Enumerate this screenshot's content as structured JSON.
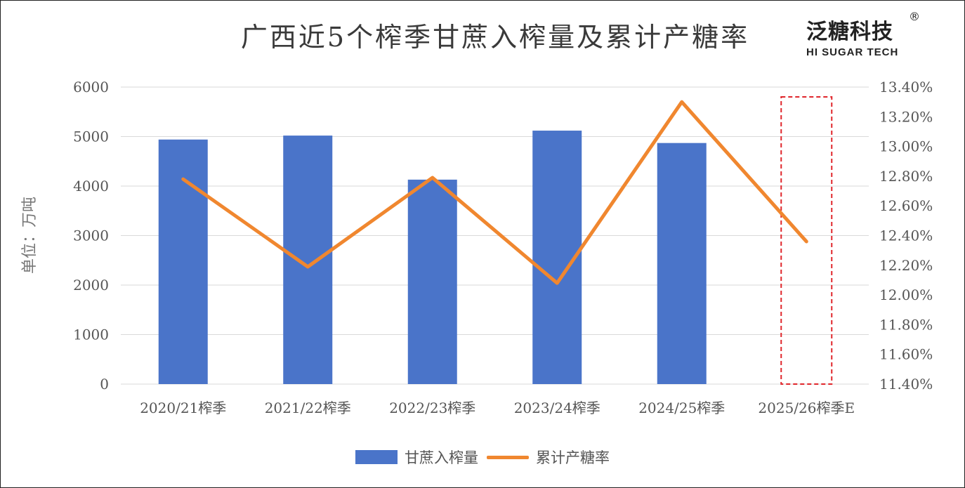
{
  "title": "广西近5个榨季甘蔗入榨量及累计产糖率",
  "brand": {
    "cn": "泛糖科技",
    "en": "HI SUGAR TECH",
    "reg": "®"
  },
  "colors": {
    "bar": "#4a74c9",
    "line": "#f0872f",
    "grid": "#d9d9d9",
    "estimate_box": "#e0262b"
  },
  "chart_data": {
    "type": "bar",
    "categories": [
      "2020/21榨季",
      "2021/22榨季",
      "2022/23榨季",
      "2023/24榨季",
      "2024/25榨季",
      "2025/26榨季E"
    ],
    "ylabel": "单位：万吨",
    "ylim": [
      0,
      6000
    ],
    "y_ticks": [
      "0",
      "1000",
      "2000",
      "3000",
      "4000",
      "5000",
      "6000"
    ],
    "y2lim": [
      11.4,
      13.4
    ],
    "y2_ticks": [
      "11.40%",
      "11.60%",
      "11.80%",
      "12.00%",
      "12.20%",
      "12.40%",
      "12.60%",
      "12.80%",
      "13.00%",
      "13.20%",
      "13.40%"
    ],
    "grid": true,
    "legend_position": "bottom",
    "series": [
      {
        "name": "甘蔗入榨量",
        "type": "bar",
        "axis": "left",
        "values": [
          4940,
          5020,
          4130,
          5120,
          4870,
          null
        ]
      },
      {
        "name": "累计产糖率",
        "type": "line",
        "axis": "right",
        "values": [
          12.78,
          12.19,
          12.79,
          12.08,
          13.3,
          12.36
        ]
      }
    ],
    "estimate_highlight": "2025/26榨季E"
  }
}
